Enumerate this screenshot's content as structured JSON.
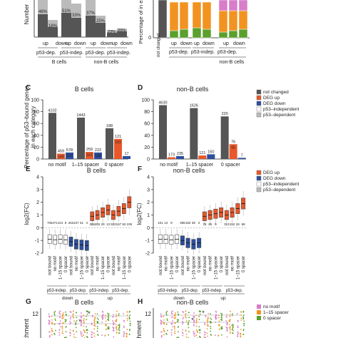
{
  "panels": {
    "A": {
      "ylabel": "Number",
      "groups": [
        "B cells",
        "non-B cells"
      ],
      "sub": [
        "p53-dep.",
        "p53-indep."
      ],
      "dirs": [
        "up",
        "down"
      ],
      "labels": [
        "46%",
        "51%",
        "37%",
        "18%",
        "33%",
        "25%",
        "23%",
        "20%"
      ]
    },
    "B": {
      "ylabel": "Percentage of in each",
      "ytick0": "0",
      "cat": "not changed",
      "sub": [
        "p53-dep.",
        "p53-indep."
      ],
      "dirs": [
        "up",
        "down"
      ],
      "group": "non-B cells"
    },
    "C": {
      "letter": "C",
      "title": "B cells"
    },
    "D": {
      "letter": "D",
      "title": "non-B cells"
    },
    "E": {
      "letter": "E",
      "title": "B cells"
    },
    "F": {
      "letter": "F",
      "title": "non-B cells"
    },
    "G": {
      "letter": "G",
      "title": "B cells",
      "ylabel": "chment",
      "ytick": "12",
      "star": "*"
    },
    "H": {
      "letter": "H",
      "title": "non-B cells",
      "ylabel": "hment",
      "ytick": "12",
      "star": "*"
    }
  },
  "cd_ylabel": [
    "Percentage of p53–bound genes",
    "in each category"
  ],
  "ef_ylabel": "log2(FC)",
  "legend_cd": [
    "not changed",
    "DEG up",
    "DEG down",
    "p53–independent",
    "p53–dependent"
  ],
  "legend_ef": [
    "DEG up",
    "DEG down",
    "p53–independent",
    "p53–dependent"
  ],
  "legend_gh": [
    "no motif",
    "1–15 spacer",
    "0 spacer"
  ],
  "ef_cats": [
    "not bound",
    "no motif",
    "1–15 spacer",
    "0 spacer",
    "not bound",
    "no motif",
    "1–15 spacer",
    "0 spacer",
    "not bound",
    "no motif",
    "1–15 spacer",
    "0 spacer",
    "not bound",
    "no motif",
    "1–15 spacer",
    "0 spacer"
  ],
  "ef_sub": [
    "p53-indep.",
    "p53-dep.",
    "p53-indep.",
    "p53-dep."
  ],
  "ef_dir": [
    "down",
    "up"
  ],
  "colors": {
    "not_changed": "#555555",
    "up": "#e8582a",
    "down": "#2c4f9e",
    "indep": "#ffffff",
    "dep": "#bbbbbb",
    "B_green": "#5aa02c",
    "B_orange": "#f29321",
    "B_pink": "#d77dc9"
  },
  "chart_data": [
    {
      "type": "bar",
      "panel": "C",
      "title": "B cells",
      "categories": [
        "no motif",
        "1–15 spacer",
        "0 spacer"
      ],
      "ylim": [
        0,
        100
      ],
      "yticks": [
        0,
        20,
        40,
        60,
        80,
        100
      ],
      "series": [
        {
          "name": "not changed",
          "values": [
            78,
            70,
            52
          ],
          "labels": [
            "4102",
            "1443",
            "188"
          ]
        },
        {
          "name": "DEG up",
          "values": [
            9,
            12,
            34
          ],
          "labels": [
            "459",
            "259",
            "121"
          ]
        },
        {
          "name": "DEG down",
          "values": [
            11,
            11,
            5
          ],
          "labels": [
            "578",
            "222",
            "17"
          ]
        }
      ],
      "inner_labels": [
        [
          "169",
          "107"
        ],
        [
          "161",
          "198"
        ],
        [
          "101",
          "20"
        ]
      ]
    },
    {
      "type": "bar",
      "panel": "D",
      "title": "non-B cells",
      "categories": [
        "no motif",
        "1–15 spacer",
        "0 spacer"
      ],
      "ylim": [
        0,
        100
      ],
      "yticks": [
        0,
        20,
        40,
        60,
        80,
        100
      ],
      "series": [
        {
          "name": "not changed",
          "values": [
            91,
            86,
            72
          ],
          "labels": [
            "4630",
            "1626",
            "220"
          ]
        },
        {
          "name": "DEG up",
          "values": [
            3,
            6,
            25
          ],
          "labels": [
            "173",
            "121",
            "76"
          ]
        },
        {
          "name": "DEG down",
          "values": [
            5,
            8,
            2
          ],
          "labels": [
            "235",
            "150",
            "7"
          ]
        }
      ],
      "inner_labels": [
        [
          "",
          ""
        ],
        [
          "",
          ""
        ],
        [
          "65",
          ""
        ]
      ]
    },
    {
      "type": "box",
      "panel": "E",
      "title": "B cells",
      "ylim": [
        -2,
        4
      ],
      "yticks": [
        -2,
        -1,
        0,
        1,
        2,
        3,
        4
      ],
      "counts": [
        "705",
        "471",
        "101",
        "9",
        "262",
        "107",
        "31",
        "4",
        "366",
        "202",
        "29",
        "13",
        "522",
        "167",
        "92",
        "109"
      ],
      "medians": [
        -0.9,
        -0.95,
        -0.9,
        -0.95,
        -1.1,
        -1.3,
        -1.35,
        -1.4,
        0.9,
        1.0,
        1.2,
        1.4,
        1.0,
        1.3,
        1.5,
        2.0
      ]
    },
    {
      "type": "box",
      "panel": "F",
      "title": "non-B cells",
      "ylim": [
        -2,
        4
      ],
      "yticks": [
        -2,
        -1,
        0,
        1,
        2,
        3,
        4
      ],
      "counts": [
        "101",
        "13",
        "9",
        "",
        "398",
        "182",
        "38",
        "2",
        "76",
        "45",
        "9",
        "",
        "313",
        "152",
        "26",
        "68"
      ],
      "medians": [
        -0.9,
        -0.9,
        -0.95,
        -0.9,
        -1.0,
        -1.2,
        -1.3,
        -1.2,
        0.9,
        1.0,
        1.1,
        1.2,
        1.0,
        1.2,
        1.5,
        1.9
      ]
    }
  ]
}
